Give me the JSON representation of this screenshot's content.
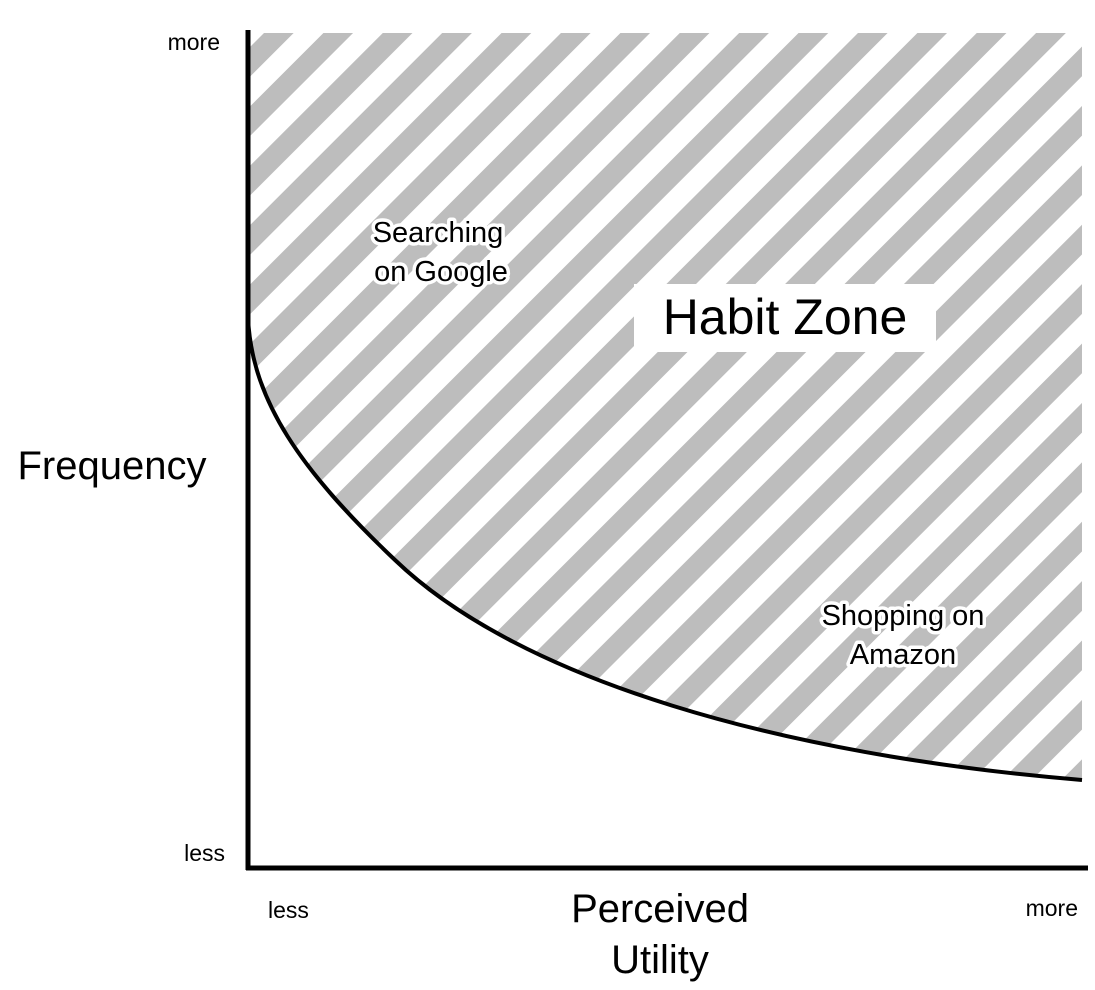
{
  "diagram": {
    "y_axis": {
      "label": "Frequency",
      "high": "more",
      "low": "less"
    },
    "x_axis": {
      "label_line1": "Perceived",
      "label_line2": "Utility",
      "low": "less",
      "high": "more"
    },
    "zone_label": "Habit Zone",
    "examples": [
      {
        "line1": "Searching",
        "line2": "on Google"
      },
      {
        "line1": "Shopping on",
        "line2": "Amazon"
      }
    ],
    "colors": {
      "stripe": "#bdbdbd",
      "background": "#ffffff",
      "ink": "#000000"
    }
  }
}
